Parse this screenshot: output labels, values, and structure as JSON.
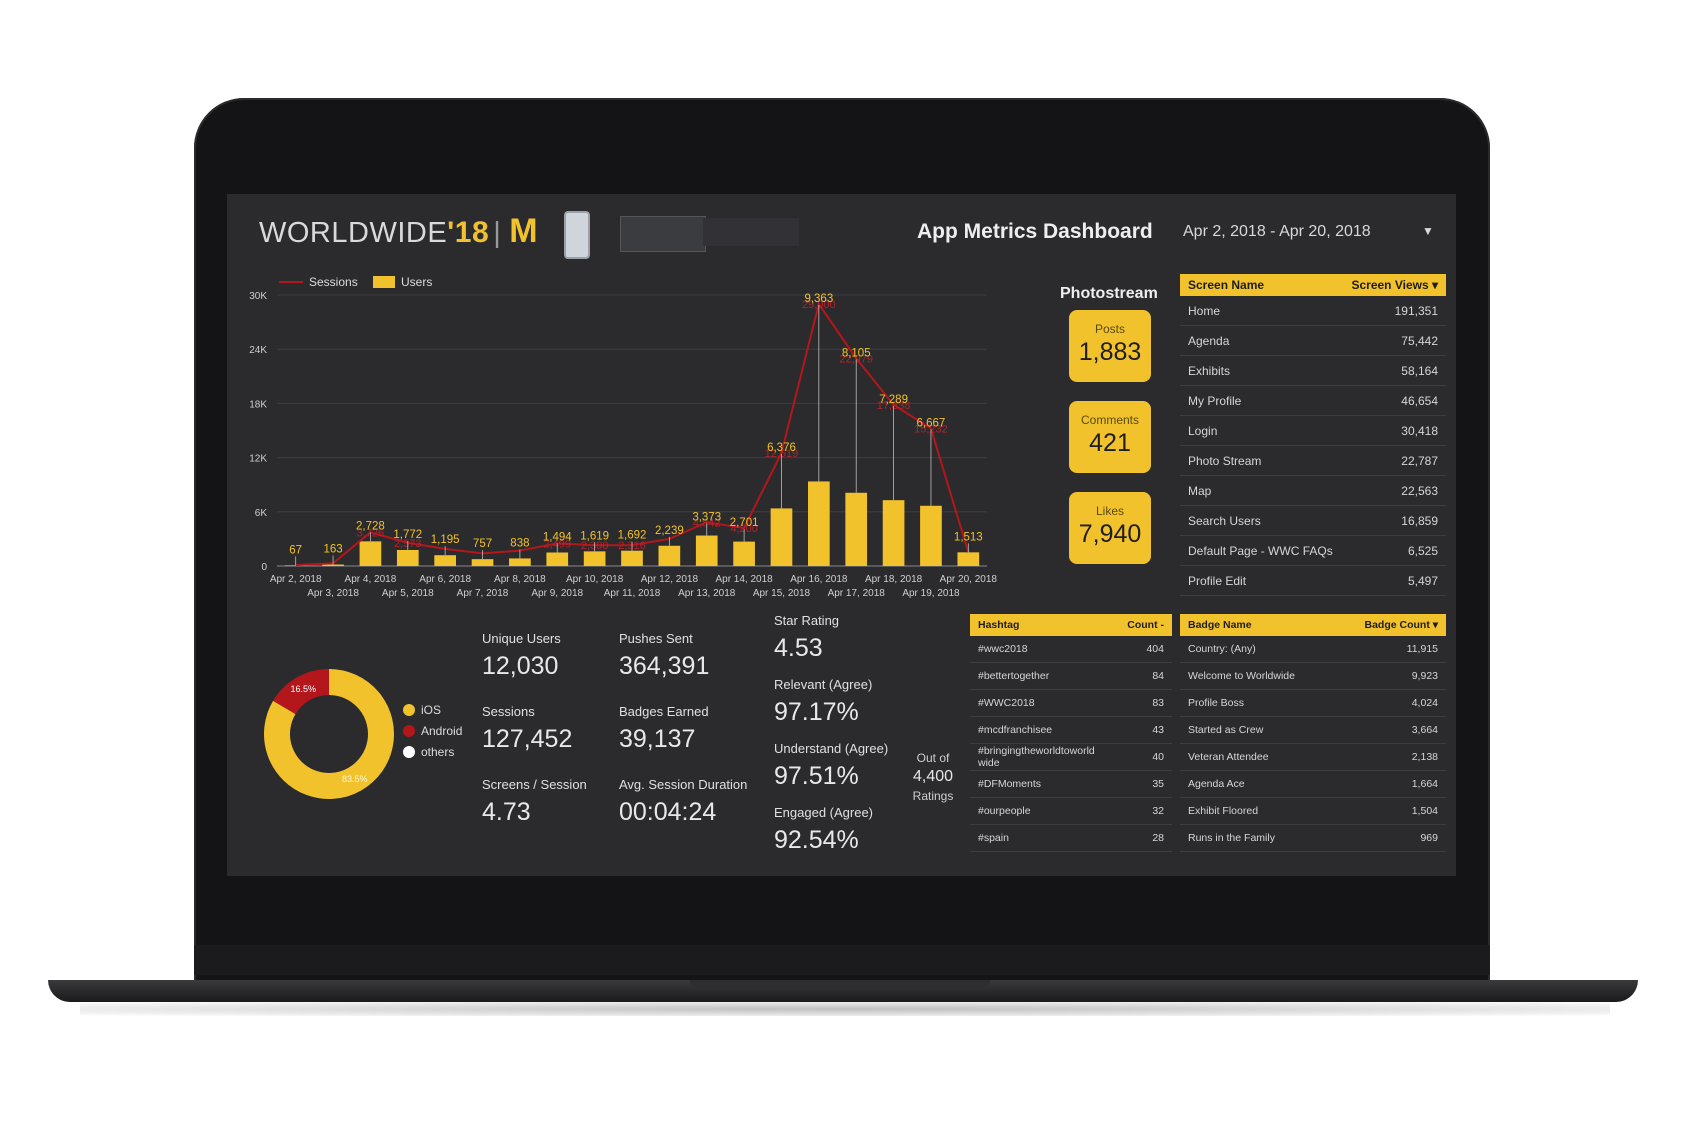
{
  "header": {
    "logo_text": "WORLDWIDE",
    "logo_year": "'18",
    "title": "App Metrics Dashboard",
    "date_range": "Apr 2, 2018 - Apr 20, 2018"
  },
  "chart_data": {
    "type": "bar",
    "legend": [
      "Sessions",
      "Users"
    ],
    "ylim": [
      0,
      30000
    ],
    "yticks": [
      "0",
      "6K",
      "12K",
      "18K",
      "24K",
      "30K"
    ],
    "categories": [
      "Apr 2, 2018",
      "Apr 3, 2018",
      "Apr 4, 2018",
      "Apr 5, 2018",
      "Apr 6, 2018",
      "Apr 7, 2018",
      "Apr 8, 2018",
      "Apr 9, 2018",
      "Apr 10, 2018",
      "Apr 11, 2018",
      "Apr 12, 2018",
      "Apr 13, 2018",
      "Apr 14, 2018",
      "Apr 15, 2018",
      "Apr 16, 2018",
      "Apr 17, 2018",
      "Apr 18, 2018",
      "Apr 19, 2018",
      "Apr 20, 2018"
    ],
    "series": [
      {
        "name": "Users",
        "type": "bar",
        "values": [
          67,
          163,
          2728,
          1772,
          1195,
          757,
          838,
          1494,
          1619,
          1692,
          2239,
          3373,
          2701,
          6376,
          9363,
          8105,
          7289,
          6667,
          1513
        ]
      },
      {
        "name": "Sessions",
        "type": "line",
        "values": [
          100,
          300,
          3726,
          2573,
          1900,
          1400,
          1700,
          2499,
          2300,
          2316,
          3000,
          4842,
          4200,
          12519,
          29000,
          22979,
          17838,
          15232,
          1513
        ]
      }
    ],
    "bar_labels": [
      "67",
      "163",
      "2,728",
      "1,772",
      "1,195",
      "757",
      "838",
      "1,494",
      "1,619",
      "1,692",
      "2,239",
      "3,373",
      "2,701",
      "6,376",
      "9,363",
      "8,105",
      "7,289",
      "6,667",
      "1,513"
    ],
    "line_labels": [
      "",
      "",
      "3,726",
      "2,573",
      "",
      "",
      "",
      "2,499",
      "2,300",
      "2,316",
      "",
      "4,842",
      "4,200",
      "12,519",
      "29,000",
      "22,979",
      "17,838",
      "15,232",
      ""
    ],
    "colors": {
      "bar": "#f2c22d",
      "line": "#b3161b"
    }
  },
  "photostream": {
    "title": "Photostream",
    "cards": [
      {
        "label": "Posts",
        "value": "1,883"
      },
      {
        "label": "Comments",
        "value": "421"
      },
      {
        "label": "Likes",
        "value": "7,940"
      }
    ]
  },
  "screen_table": {
    "col1": "Screen Name",
    "col2": "Screen Views ▾",
    "rows": [
      [
        "Home",
        "191,351"
      ],
      [
        "Agenda",
        "75,442"
      ],
      [
        "Exhibits",
        "58,164"
      ],
      [
        "My Profile",
        "46,654"
      ],
      [
        "Login",
        "30,418"
      ],
      [
        "Photo Stream",
        "22,787"
      ],
      [
        "Map",
        "22,563"
      ],
      [
        "Search Users",
        "16,859"
      ],
      [
        "Default Page - WWC FAQs",
        "6,525"
      ],
      [
        "Profile Edit",
        "5,497"
      ]
    ]
  },
  "hashtag_table": {
    "col1": "Hashtag",
    "col2": "Count -",
    "rows": [
      [
        "#wwc2018",
        "404"
      ],
      [
        "#bettertogether",
        "84"
      ],
      [
        "#WWC2018",
        "83"
      ],
      [
        "#mcdfranchisee",
        "43"
      ],
      [
        "#bringingtheworldtoworld wide",
        "40"
      ],
      [
        "#DFMoments",
        "35"
      ],
      [
        "#ourpeople",
        "32"
      ],
      [
        "#spain",
        "28"
      ]
    ]
  },
  "badge_table": {
    "col1": "Badge Name",
    "col2": "Badge Count ▾",
    "rows": [
      [
        "Country: (Any)",
        "11,915"
      ],
      [
        "Welcome to Worldwide",
        "9,923"
      ],
      [
        "Profile Boss",
        "4,024"
      ],
      [
        "Started as Crew",
        "3,664"
      ],
      [
        "Veteran Attendee",
        "2,138"
      ],
      [
        "Agenda Ace",
        "1,664"
      ],
      [
        "Exhibit Floored",
        "1,504"
      ],
      [
        "Runs in the Family",
        "969"
      ]
    ]
  },
  "donut": {
    "segments": [
      {
        "name": "iOS",
        "percent": 83.5,
        "label": "83.5%",
        "color": "#f2c22d"
      },
      {
        "name": "Android",
        "percent": 16.5,
        "label": "16.5%",
        "color": "#b3161b"
      },
      {
        "name": "others",
        "percent": 0,
        "label": "",
        "color": "#ffffff"
      }
    ]
  },
  "metrics": {
    "unique_users": {
      "label": "Unique Users",
      "value": "12,030"
    },
    "pushes_sent": {
      "label": "Pushes Sent",
      "value": "364,391"
    },
    "sessions": {
      "label": "Sessions",
      "value": "127,452"
    },
    "badges_earned": {
      "label": "Badges Earned",
      "value": "39,137"
    },
    "screens_session": {
      "label": "Screens / Session",
      "value": "4.73"
    },
    "avg_session": {
      "label": "Avg. Session Duration",
      "value": "00:04:24"
    },
    "star_rating": {
      "label": "Star Rating",
      "value": "4.53"
    },
    "relevant": {
      "label": "Relevant (Agree)",
      "value": "97.17%"
    },
    "understand": {
      "label": "Understand (Agree)",
      "value": "97.51%"
    },
    "engaged": {
      "label": "Engaged (Agree)",
      "value": "92.54%"
    }
  },
  "ratings": {
    "prefix": "Out of",
    "value": "4,400",
    "suffix": "Ratings"
  }
}
